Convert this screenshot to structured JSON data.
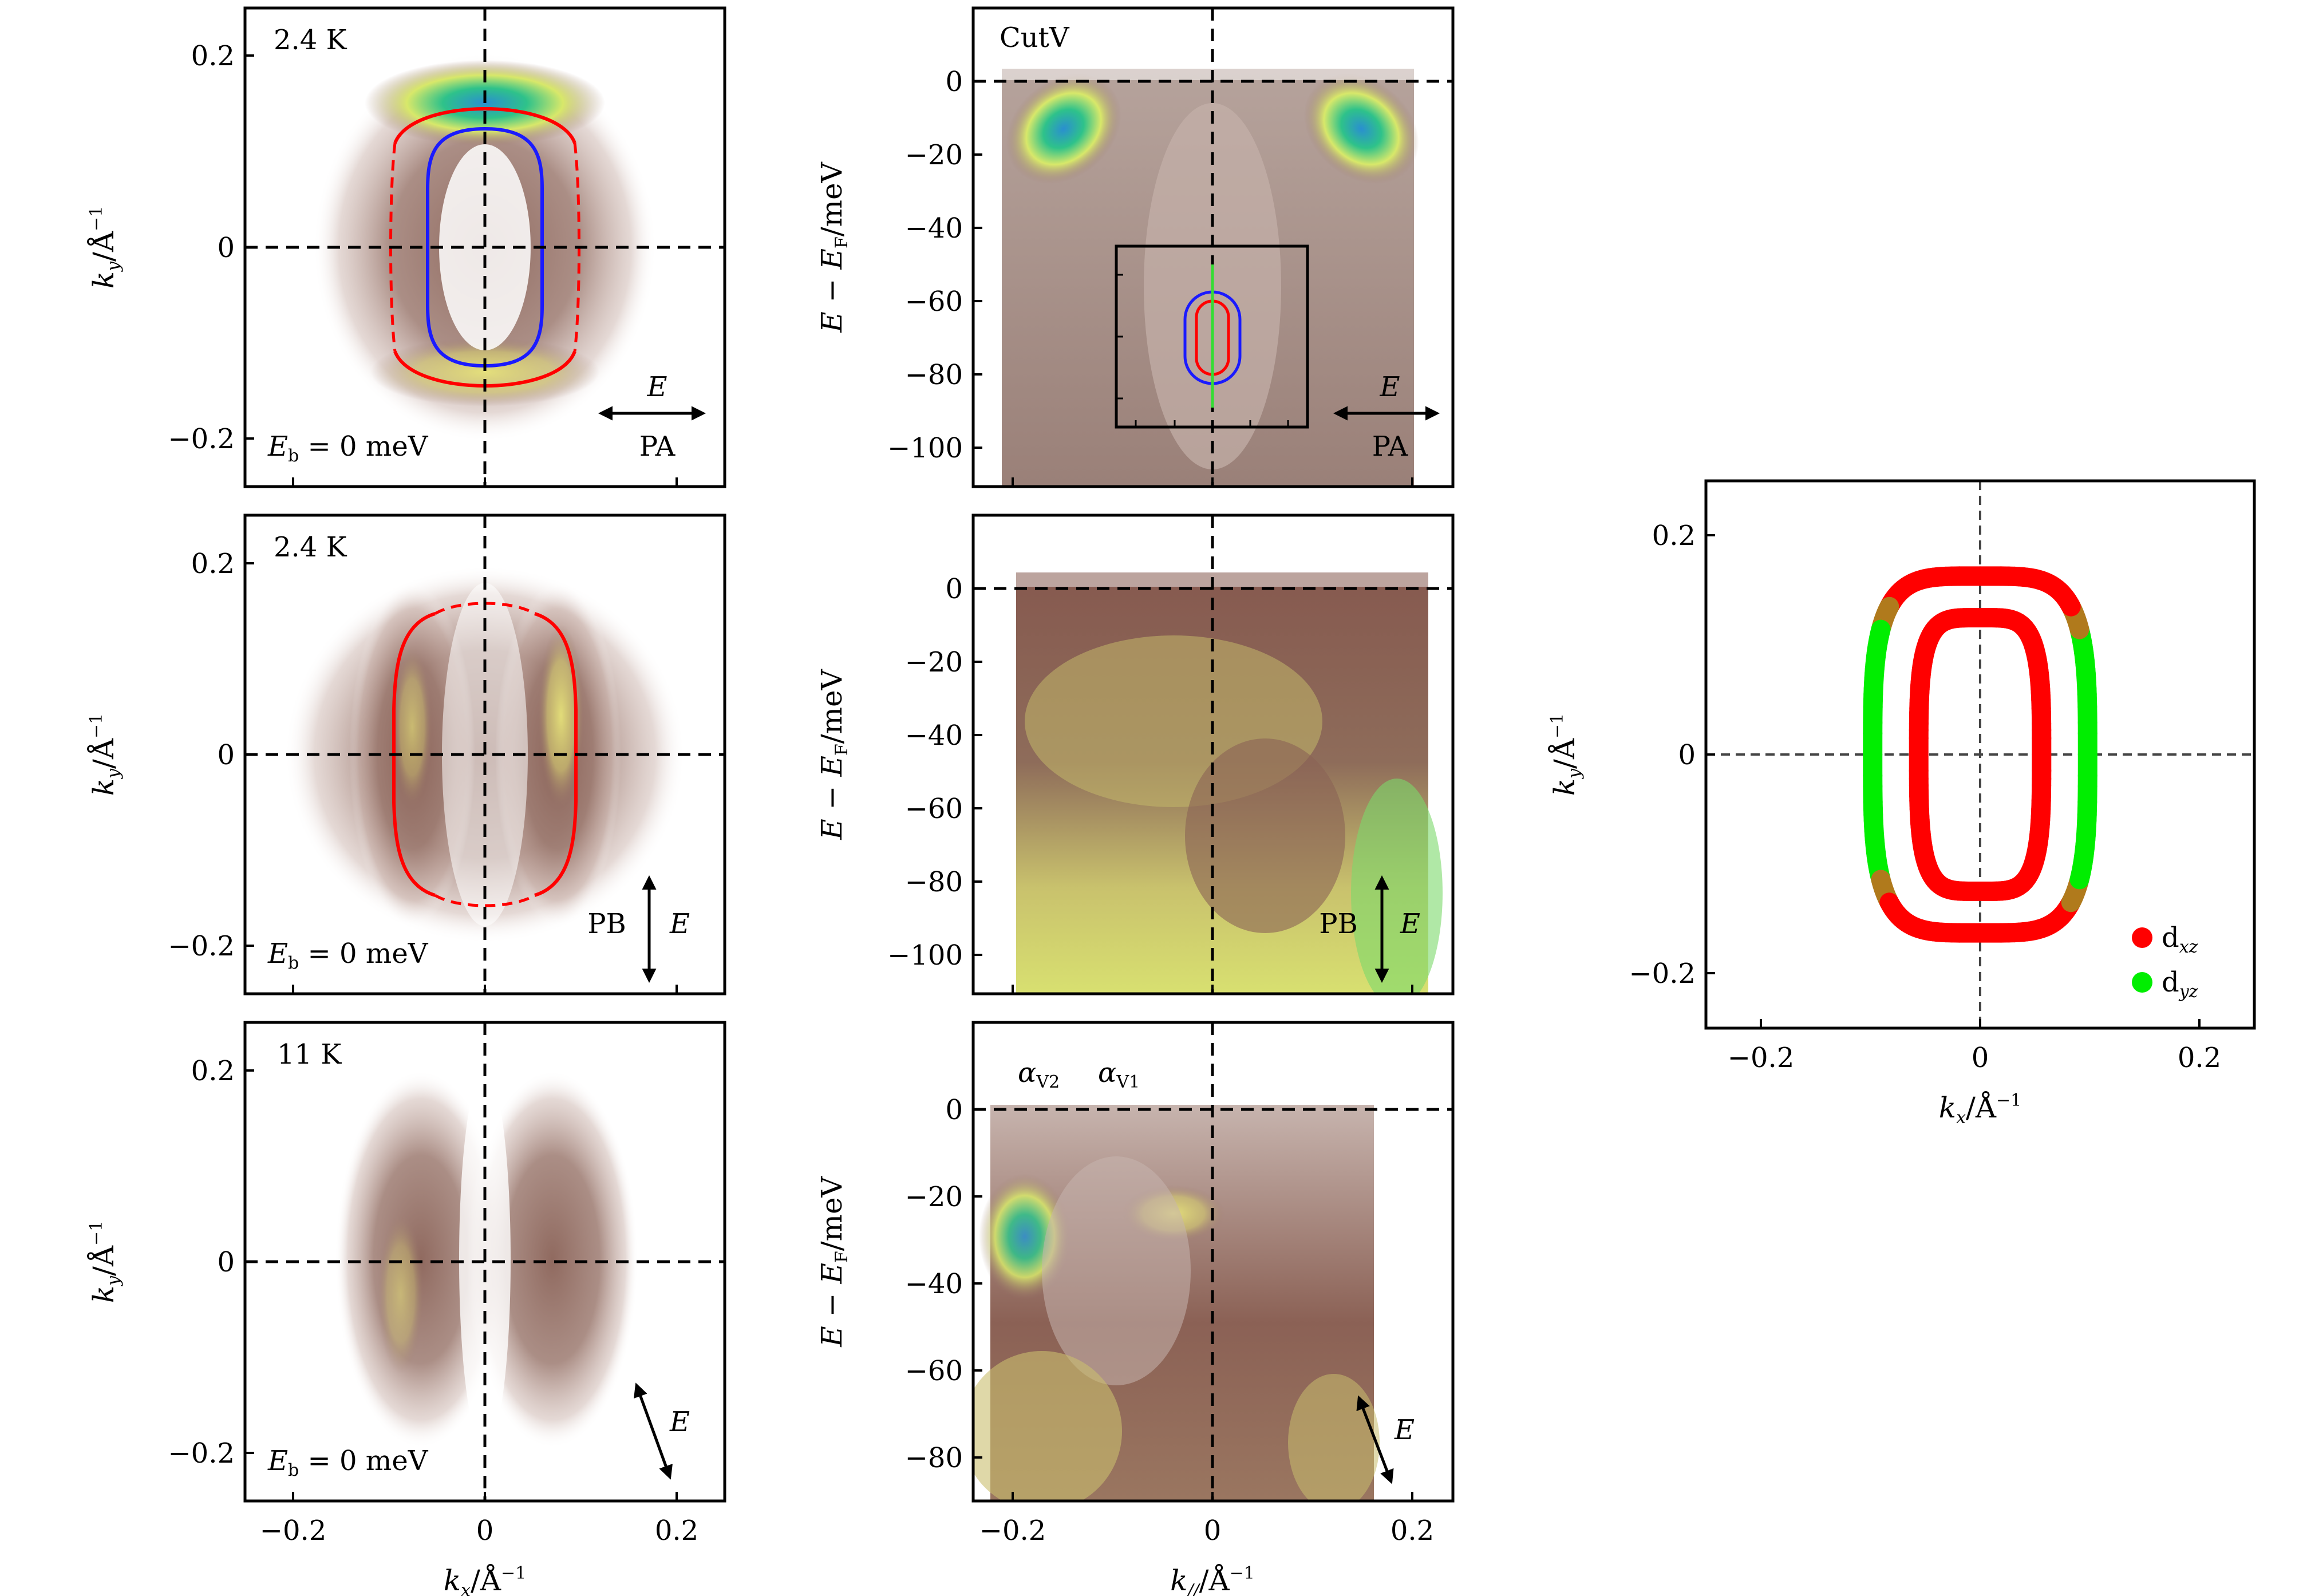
{
  "chart_data": [
    {
      "id": "fs-pa",
      "type": "heatmap",
      "title": "",
      "xlabel": "",
      "ylabel": "k_y/Å^-1",
      "xlim": [
        -0.25,
        0.25
      ],
      "ylim": [
        -0.25,
        0.25
      ],
      "xticks": [
        -0.2,
        0,
        0.2
      ],
      "yticks": [
        -0.2,
        0,
        0.2
      ],
      "xtick_labels": [
        "",
        "",
        ""
      ],
      "ytick_labels": [
        "−0.2",
        "0",
        "0.2"
      ],
      "annotations": [
        "2.4 K",
        "E_b = 0 meV",
        "E",
        "PA"
      ],
      "polarization": "horizontal",
      "contours": [
        {
          "name": "",
          "color": "#0000ff",
          "shape": "oval",
          "kx_half": 0.056,
          "ky_half": 0.125,
          "style": "solid"
        },
        {
          "name": "",
          "color": "#ff0000",
          "shape": "oval",
          "kx_half": 0.098,
          "ky_half": 0.163,
          "style": "solid-top-bottom-dashed-sides"
        }
      ],
      "grid": false
    },
    {
      "id": "fs-pb",
      "type": "heatmap",
      "xlabel": "",
      "ylabel": "k_y/Å^-1",
      "xlim": [
        -0.25,
        0.25
      ],
      "ylim": [
        -0.25,
        0.25
      ],
      "xticks": [
        -0.2,
        0,
        0.2
      ],
      "yticks": [
        -0.2,
        0,
        0.2
      ],
      "xtick_labels": [
        "",
        "",
        ""
      ],
      "ytick_labels": [
        "−0.2",
        "0",
        "0.2"
      ],
      "annotations": [
        "2.4 K",
        "E_b = 0 meV",
        "PB",
        "E"
      ],
      "polarization": "vertical",
      "contours": [
        {
          "name": "",
          "color": "#ff0000",
          "shape": "oval",
          "kx_half": 0.098,
          "ky_half": 0.163,
          "style": "solid-sides-dashed-top-bottom"
        }
      ]
    },
    {
      "id": "fs-11k",
      "type": "heatmap",
      "xlabel": "k_x/Å^-1",
      "ylabel": "k_y/Å^-1",
      "xlim": [
        -0.25,
        0.25
      ],
      "ylim": [
        -0.25,
        0.25
      ],
      "xticks": [
        -0.2,
        0,
        0.2
      ],
      "yticks": [
        -0.2,
        0,
        0.2
      ],
      "xtick_labels": [
        "−0.2",
        "0",
        "0.2"
      ],
      "ytick_labels": [
        "−0.2",
        "0",
        "0.2"
      ],
      "annotations": [
        "11 K",
        "E_b = 0 meV",
        "E"
      ],
      "polarization": "diagonal"
    },
    {
      "id": "cut-pa",
      "type": "heatmap",
      "xlabel": "",
      "ylabel": "E−E_F/meV",
      "xlim": [
        -0.24,
        0.24
      ],
      "ylim": [
        -110,
        20
      ],
      "xticks": [
        -0.2,
        0,
        0.2
      ],
      "yticks": [
        0,
        -20,
        -40,
        -60,
        -80,
        -100
      ],
      "ytick_labels": [
        "0",
        "−20",
        "−40",
        "−60",
        "−80",
        "−100"
      ],
      "annotations": [
        "CutV",
        "E",
        "PA"
      ],
      "inset": {
        "xlim": [
          -0.1,
          0.1
        ],
        "ylim": [
          -0.2,
          0.2
        ],
        "contours": [
          "blue outer oval",
          "red inner oval",
          "green vertical cut"
        ]
      }
    },
    {
      "id": "cut-pb",
      "type": "heatmap",
      "xlabel": "",
      "ylabel": "E−E_F/meV",
      "xlim": [
        -0.24,
        0.24
      ],
      "ylim": [
        -110,
        20
      ],
      "xticks": [
        -0.2,
        0,
        0.2
      ],
      "yticks": [
        0,
        -20,
        -40,
        -60,
        -80,
        -100
      ],
      "ytick_labels": [
        "0",
        "−20",
        "−40",
        "−60",
        "−80",
        "−100"
      ],
      "annotations": [
        "PB",
        "E"
      ]
    },
    {
      "id": "cut-11k",
      "type": "heatmap",
      "xlabel": "k_//Å^-1",
      "ylabel": "E−E_F/meV",
      "xlim": [
        -0.24,
        0.24
      ],
      "ylim": [
        -90,
        20
      ],
      "xticks": [
        -0.2,
        0,
        0.2
      ],
      "yticks": [
        0,
        -20,
        -40,
        -60,
        -80
      ],
      "xtick_labels": [
        "−0.2",
        "0",
        "0.2"
      ],
      "ytick_labels": [
        "0",
        "−20",
        "−40",
        "−60",
        "−80"
      ],
      "annotations": [
        "α_V2",
        "α_V1",
        "E"
      ]
    },
    {
      "id": "orbital",
      "type": "scatter",
      "xlabel": "k_x/Å^-1",
      "ylabel": "k_y/Å^-1",
      "xlim": [
        -0.25,
        0.25
      ],
      "ylim": [
        -0.25,
        0.25
      ],
      "xticks": [
        -0.2,
        0,
        0.2
      ],
      "yticks": [
        -0.2,
        0,
        0.2
      ],
      "xtick_labels": [
        "−0.2",
        "0",
        "0.2"
      ],
      "ytick_labels": [
        "−0.2",
        "0",
        "0.2"
      ],
      "legend": {
        "placement": "bottom-right",
        "entries": [
          {
            "name": "d_xz",
            "color": "#ff0000"
          },
          {
            "name": "d_yz",
            "color": "#00ee00"
          }
        ]
      },
      "series": [
        {
          "name": "inner",
          "kx_half": 0.056,
          "ky_half": 0.125,
          "color": "#ff0000"
        },
        {
          "name": "outer",
          "kx_half": 0.098,
          "ky_half": 0.163,
          "color": "#ff0000",
          "side_color": "#00ee00"
        }
      ]
    }
  ],
  "labels": {
    "ky": "k",
    "ky_sub": "y",
    "unit_a": "/Å",
    "unit_exp": "−1",
    "kx": "k",
    "kx_sub": "x",
    "kpar": "k",
    "kpar_sub": "//",
    "energy": "E − E",
    "energy_sub": "F",
    "energy_unit": "/meV",
    "temp1": "2.4 K",
    "temp2": "2.4 K",
    "temp3": "11 K",
    "eb": "E",
    "eb_sub": "b",
    "eb_val": " = 0 meV",
    "field_E": "E",
    "pa": "PA",
    "pb": "PB",
    "cutv": "CutV",
    "av2": "α",
    "av2_sub": "V2",
    "av1": "α",
    "av1_sub": "V1",
    "dxz": "d",
    "dxz_sub": "xz",
    "dyz": "d",
    "dyz_sub": "yz"
  }
}
